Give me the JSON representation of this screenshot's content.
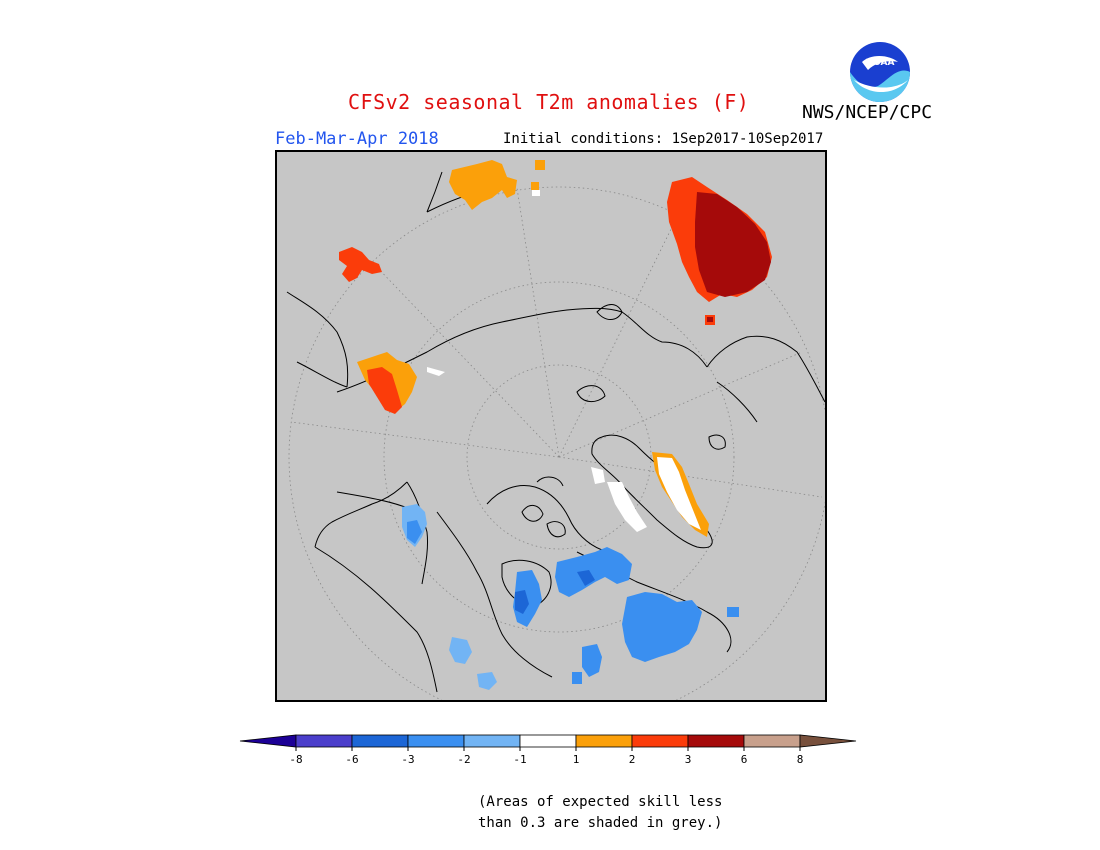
{
  "title": "CFSv2 seasonal T2m anomalies (F)",
  "agency": "NWS/NCEP/CPC",
  "logo_text": "NOAA",
  "season": "Feb-Mar-Apr 2018",
  "initial_conditions": "Initial conditions: 1Sep2017-10Sep2017",
  "map": {
    "projection": "north polar stereographic",
    "background_color": "#c6c6c6"
  },
  "legend": {
    "bins": [
      {
        "range": "< -8",
        "color": "#1c0096"
      },
      {
        "range": "-8 to -6",
        "color": "#4b3ecb"
      },
      {
        "range": "-6 to -3",
        "color": "#1c66d6"
      },
      {
        "range": "-3 to -2",
        "color": "#3a8ff0"
      },
      {
        "range": "-2 to -1",
        "color": "#72b4f4"
      },
      {
        "range": "-1 to 1",
        "color": "#ffffff"
      },
      {
        "range": "1 to 2",
        "color": "#fba00a"
      },
      {
        "range": "2 to 3",
        "color": "#fb3c0a"
      },
      {
        "range": "3 to 6",
        "color": "#a50a0a"
      },
      {
        "range": "6 to 8",
        "color": "#c8a08c"
      },
      {
        "range": "> 8",
        "color": "#78503c"
      }
    ],
    "tick_labels": [
      "-8",
      "-6",
      "-3",
      "-2",
      "-1",
      "1",
      "2",
      "3",
      "6",
      "8"
    ]
  },
  "note": {
    "line1": "(Areas of expected skill less",
    "line2": "than 0.3 are shaded in grey.)"
  }
}
